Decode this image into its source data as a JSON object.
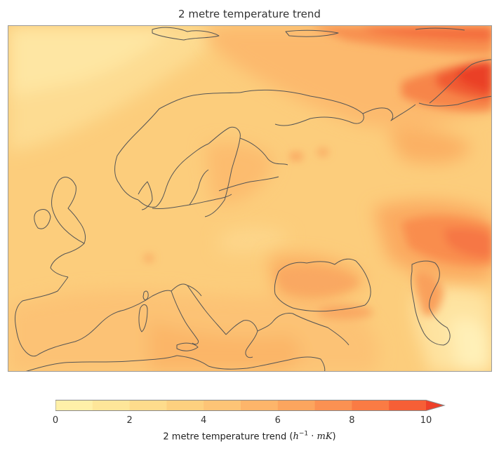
{
  "title": "2 metre temperature trend",
  "colorbar": {
    "label_text": "2 metre temperature trend",
    "label_units_html": "(<i>h</i><sup style=\"font-size:9px\">−1</sup> · <i>mK</i>)",
    "min": 0,
    "max": 10,
    "extend": "max",
    "ticks": [
      "0",
      "2",
      "4",
      "6",
      "8",
      "10"
    ],
    "colors": [
      "#fff0a8",
      "#fee699",
      "#fedc8c",
      "#fdd07f",
      "#fdc476",
      "#fdb56a",
      "#fca55e",
      "#fb9152",
      "#fa7b44",
      "#f65f36",
      "#ee4029"
    ]
  },
  "map": {
    "region": "Europe",
    "background_level_color": "#fccd7c",
    "coastline_color": "#555555"
  }
}
